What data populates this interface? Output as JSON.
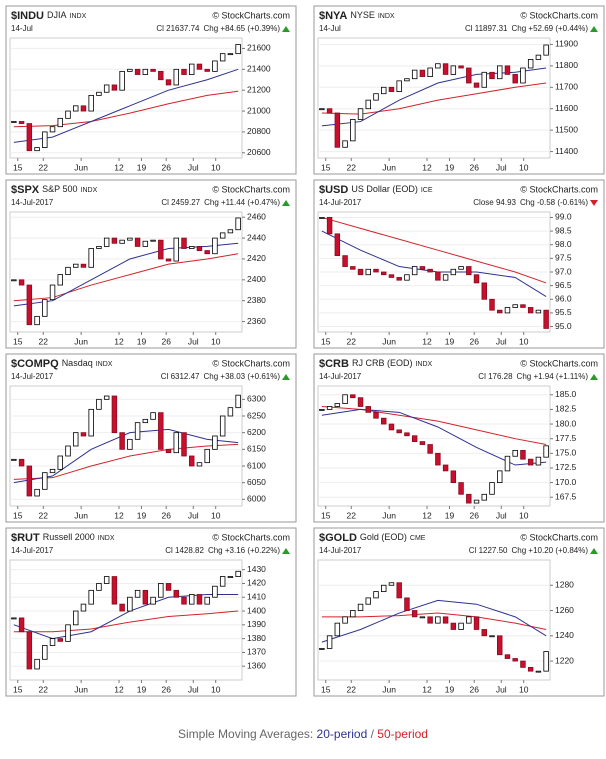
{
  "chart_data": [
    {
      "type": "candlestick",
      "symbol": "$INDU",
      "name": "DJIA",
      "exchange": "INDX",
      "source": "© StockCharts.com",
      "date": "14-Jul",
      "quote": "Cl 21637.74",
      "change": "Chg +84.65 (+0.39%)",
      "direction": "up",
      "xticks": [
        {
          "value": 0.5,
          "label": "15"
        },
        {
          "value": 3.8,
          "label": "22"
        },
        {
          "value": 8.7,
          "label": "Jun"
        },
        {
          "value": 13.6,
          "label": "12"
        },
        {
          "value": 16.5,
          "label": "19"
        },
        {
          "value": 19.7,
          "label": "26"
        },
        {
          "value": 23.2,
          "label": "Jul"
        },
        {
          "value": 26.1,
          "label": "10"
        }
      ],
      "xlim": [
        -0.5,
        29.5
      ],
      "ylim": [
        20550,
        21700
      ],
      "yticks": [
        20600,
        20800,
        21000,
        21200,
        21400,
        21600
      ],
      "closes": [
        20900,
        20880,
        20620,
        20650,
        20800,
        20850,
        20930,
        21000,
        21050,
        21000,
        21150,
        21180,
        21250,
        21200,
        21380,
        21400,
        21350,
        21400,
        21380,
        21300,
        21250,
        21400,
        21350,
        21450,
        21400,
        21380,
        21480,
        21550,
        21550,
        21637.74
      ],
      "ma_x": [
        0,
        5,
        10,
        15,
        20,
        25,
        29
      ],
      "ma20": {
        "color": "#2e3192",
        "values": [
          20700,
          20750,
          20900,
          21050,
          21200,
          21300,
          21400
        ]
      },
      "ma50": {
        "color": "#d2232a",
        "values": [
          20850,
          20860,
          20900,
          20980,
          21070,
          21150,
          21190
        ]
      }
    },
    {
      "type": "candlestick",
      "symbol": "$NYA",
      "name": "NYSE",
      "exchange": "INDX",
      "source": "© StockCharts.com",
      "date": "14-Jul",
      "quote": "Cl 11897.31",
      "change": "Chg +52.69 (+0.44%)",
      "direction": "up",
      "xticks": [
        {
          "value": 0.5,
          "label": "15"
        },
        {
          "value": 3.8,
          "label": "22"
        },
        {
          "value": 8.7,
          "label": "Jun"
        },
        {
          "value": 13.6,
          "label": "12"
        },
        {
          "value": 16.5,
          "label": "19"
        },
        {
          "value": 19.7,
          "label": "26"
        },
        {
          "value": 23.2,
          "label": "Jul"
        },
        {
          "value": 26.1,
          "label": "10"
        }
      ],
      "xlim": [
        -0.5,
        29.5
      ],
      "ylim": [
        11370,
        11930
      ],
      "yticks": [
        11400,
        11500,
        11600,
        11700,
        11800,
        11900
      ],
      "closes": [
        11600,
        11580,
        11420,
        11450,
        11550,
        11600,
        11640,
        11670,
        11700,
        11680,
        11730,
        11740,
        11780,
        11750,
        11790,
        11810,
        11760,
        11800,
        11790,
        11720,
        11700,
        11770,
        11740,
        11800,
        11760,
        11720,
        11790,
        11830,
        11850,
        11897.31
      ],
      "ma_x": [
        0,
        5,
        10,
        15,
        20,
        25,
        29
      ],
      "ma20": {
        "color": "#2e3192",
        "values": [
          11520,
          11540,
          11640,
          11720,
          11760,
          11770,
          11790
        ]
      },
      "ma50": {
        "color": "#d2232a",
        "values": [
          11580,
          11575,
          11600,
          11640,
          11670,
          11700,
          11720
        ]
      }
    },
    {
      "type": "candlestick",
      "symbol": "$SPX",
      "name": "S&P 500",
      "exchange": "INDX",
      "source": "© StockCharts.com",
      "date": "14-Jul-2017",
      "quote": "Cl 2459.27",
      "change": "Chg +11.44 (+0.47%)",
      "direction": "up",
      "xticks": [
        {
          "value": 0.5,
          "label": "15"
        },
        {
          "value": 3.8,
          "label": "22"
        },
        {
          "value": 8.7,
          "label": "Jun"
        },
        {
          "value": 13.6,
          "label": "12"
        },
        {
          "value": 16.5,
          "label": "19"
        },
        {
          "value": 19.7,
          "label": "26"
        },
        {
          "value": 23.2,
          "label": "Jul"
        },
        {
          "value": 26.1,
          "label": "10"
        }
      ],
      "xlim": [
        -0.5,
        29.5
      ],
      "ylim": [
        2350,
        2465
      ],
      "yticks": [
        2360,
        2380,
        2400,
        2420,
        2440,
        2460
      ],
      "closes": [
        2400,
        2395,
        2357,
        2365,
        2381,
        2395,
        2405,
        2412,
        2415,
        2412,
        2430,
        2432,
        2440,
        2435,
        2438,
        2440,
        2432,
        2437,
        2438,
        2420,
        2418,
        2440,
        2430,
        2432,
        2428,
        2425,
        2440,
        2445,
        2448,
        2459.27
      ],
      "ma_x": [
        0,
        5,
        10,
        15,
        20,
        25,
        29
      ],
      "ma20": {
        "color": "#2e3192",
        "values": [
          2375,
          2380,
          2400,
          2420,
          2430,
          2432,
          2435
        ]
      },
      "ma50": {
        "color": "#d2232a",
        "values": [
          2380,
          2383,
          2395,
          2405,
          2415,
          2420,
          2425
        ]
      }
    },
    {
      "type": "candlestick",
      "symbol": "$USD",
      "name": "US Dollar (EOD)",
      "exchange": "ICE",
      "source": "© StockCharts.com",
      "date": "14-Jul-2017",
      "quote": "Close 94.93",
      "change": "Chg -0.58 (-0.61%)",
      "direction": "down",
      "xticks": [
        {
          "value": 0.5,
          "label": "15"
        },
        {
          "value": 3.8,
          "label": "22"
        },
        {
          "value": 8.7,
          "label": "Jun"
        },
        {
          "value": 13.6,
          "label": "12"
        },
        {
          "value": 16.5,
          "label": "19"
        },
        {
          "value": 19.7,
          "label": "26"
        },
        {
          "value": 23.2,
          "label": "Jul"
        },
        {
          "value": 26.1,
          "label": "10"
        }
      ],
      "xlim": [
        -0.5,
        29.5
      ],
      "ylim": [
        94.8,
        99.2
      ],
      "yticks": [
        {
          "value": 95,
          "label": "95.0"
        },
        95.5,
        {
          "value": 96,
          "label": "96.0"
        },
        96.5,
        {
          "value": 97,
          "label": "97.0"
        },
        97.5,
        {
          "value": 98,
          "label": "98.0"
        },
        98.5,
        {
          "value": 99,
          "label": "99.0"
        }
      ],
      "closes": [
        99.0,
        98.4,
        97.6,
        97.2,
        97.1,
        96.9,
        97.1,
        97.0,
        96.9,
        96.8,
        96.7,
        96.9,
        97.2,
        97.1,
        97.0,
        96.7,
        96.9,
        97.1,
        97.2,
        96.9,
        96.6,
        96.0,
        95.6,
        95.5,
        95.7,
        95.8,
        95.7,
        95.5,
        95.6,
        94.93
      ],
      "ma_x": [
        0,
        5,
        10,
        15,
        20,
        25,
        29
      ],
      "ma20": {
        "color": "#2e3192",
        "values": [
          98.5,
          97.8,
          97.2,
          97.0,
          97.0,
          96.8,
          96.1
        ]
      },
      "ma50": {
        "color": "#d2232a",
        "values": [
          99.0,
          98.6,
          98.2,
          97.8,
          97.4,
          97.0,
          96.6
        ]
      }
    },
    {
      "type": "candlestick",
      "symbol": "$COMPQ",
      "name": "Nasdaq",
      "exchange": "INDX",
      "source": "© StockCharts.com",
      "date": "14-Jul-2017",
      "quote": "Cl 6312.47",
      "change": "Chg +38.03 (+0.61%)",
      "direction": "up",
      "xticks": [
        {
          "value": 0.5,
          "label": "15"
        },
        {
          "value": 3.8,
          "label": "22"
        },
        {
          "value": 8.7,
          "label": "Jun"
        },
        {
          "value": 13.6,
          "label": "12"
        },
        {
          "value": 16.5,
          "label": "19"
        },
        {
          "value": 19.7,
          "label": "26"
        },
        {
          "value": 23.2,
          "label": "Jul"
        },
        {
          "value": 26.1,
          "label": "10"
        }
      ],
      "xlim": [
        -0.5,
        29.5
      ],
      "ylim": [
        5980,
        6340
      ],
      "yticks": [
        6000,
        6050,
        6100,
        6150,
        6200,
        6250,
        6300
      ],
      "closes": [
        6120,
        6100,
        6010,
        6030,
        6080,
        6090,
        6130,
        6160,
        6200,
        6190,
        6270,
        6300,
        6310,
        6200,
        6150,
        6180,
        6230,
        6240,
        6260,
        6150,
        6140,
        6200,
        6130,
        6100,
        6110,
        6150,
        6190,
        6250,
        6275,
        6312.47
      ],
      "ma_x": [
        0,
        5,
        10,
        15,
        20,
        25,
        29
      ],
      "ma20": {
        "color": "#2e3192",
        "values": [
          6050,
          6070,
          6150,
          6200,
          6210,
          6180,
          6170
        ]
      },
      "ma50": {
        "color": "#d2232a",
        "values": [
          6060,
          6065,
          6100,
          6130,
          6150,
          6160,
          6165
        ]
      }
    },
    {
      "type": "candlestick",
      "symbol": "$CRB",
      "name": "RJ CRB (EOD)",
      "exchange": "INDX",
      "source": "© StockCharts.com",
      "date": "14-Jul-2017",
      "quote": "Cl 176.28",
      "change": "Chg +1.94 (+1.11%)",
      "direction": "up",
      "xticks": [
        {
          "value": 0.5,
          "label": "15"
        },
        {
          "value": 3.8,
          "label": "22"
        },
        {
          "value": 8.7,
          "label": "Jun"
        },
        {
          "value": 13.6,
          "label": "12"
        },
        {
          "value": 16.5,
          "label": "19"
        },
        {
          "value": 19.7,
          "label": "26"
        },
        {
          "value": 23.2,
          "label": "Jul"
        },
        {
          "value": 26.1,
          "label": "10"
        }
      ],
      "xlim": [
        -0.5,
        29.5
      ],
      "ylim": [
        166,
        186.5
      ],
      "yticks": [
        167.5,
        {
          "value": 170,
          "label": "170.0"
        },
        172.5,
        {
          "value": 175,
          "label": "175.0"
        },
        177.5,
        {
          "value": 180,
          "label": "180.0"
        },
        182.5,
        {
          "value": 185,
          "label": "185.0"
        }
      ],
      "closes": [
        182.5,
        183,
        183.5,
        185,
        184.5,
        183,
        182,
        181,
        180,
        179,
        178.5,
        178,
        177,
        176.5,
        175,
        173,
        172,
        170,
        168,
        166.5,
        167,
        168,
        170,
        172,
        174.5,
        175.5,
        174,
        173,
        174.34,
        176.28
      ],
      "ma_x": [
        0,
        5,
        10,
        15,
        20,
        25,
        29
      ],
      "ma20": {
        "color": "#2e3192",
        "values": [
          181.5,
          182.5,
          182,
          179.5,
          176,
          173,
          173.5
        ]
      },
      "ma50": {
        "color": "#d2232a",
        "values": [
          183,
          182.5,
          181.5,
          180.5,
          179,
          177.5,
          176.5
        ]
      }
    },
    {
      "type": "candlestick",
      "symbol": "$RUT",
      "name": "Russell 2000",
      "exchange": "INDX",
      "source": "© StockCharts.com",
      "date": "14-Jul-2017",
      "quote": "Cl 1428.82",
      "change": "Chg +3.16 (+0.22%)",
      "direction": "up",
      "xticks": [
        {
          "value": 0.5,
          "label": "15"
        },
        {
          "value": 3.8,
          "label": "22"
        },
        {
          "value": 8.7,
          "label": "Jun"
        },
        {
          "value": 13.6,
          "label": "12"
        },
        {
          "value": 16.5,
          "label": "19"
        },
        {
          "value": 19.7,
          "label": "26"
        },
        {
          "value": 23.2,
          "label": "Jul"
        },
        {
          "value": 26.1,
          "label": "10"
        }
      ],
      "xlim": [
        -0.5,
        29.5
      ],
      "ylim": [
        1350,
        1437
      ],
      "yticks": [
        1360,
        1370,
        1380,
        1390,
        1400,
        1410,
        1420,
        1430
      ],
      "closes": [
        1395,
        1385,
        1358,
        1365,
        1375,
        1380,
        1378,
        1390,
        1400,
        1405,
        1415,
        1420,
        1425,
        1405,
        1400,
        1410,
        1415,
        1405,
        1410,
        1420,
        1415,
        1410,
        1405,
        1412,
        1405,
        1410,
        1418,
        1425,
        1425,
        1428.82
      ],
      "ma_x": [
        0,
        5,
        10,
        15,
        20,
        25,
        29
      ],
      "ma20": {
        "color": "#2e3192",
        "values": [
          1390,
          1380,
          1385,
          1400,
          1410,
          1412,
          1412
        ]
      },
      "ma50": {
        "color": "#d2232a",
        "values": [
          1385,
          1385,
          1387,
          1392,
          1396,
          1398,
          1400
        ]
      }
    },
    {
      "type": "candlestick",
      "symbol": "$GOLD",
      "name": "Gold (EOD)",
      "exchange": "CME",
      "source": "© StockCharts.com",
      "date": "14-Jul-2017",
      "quote": "Cl 1227.50",
      "change": "Chg +10.20 (+0.84%)",
      "direction": "up",
      "xticks": [
        {
          "value": 0.5,
          "label": "15"
        },
        {
          "value": 3.8,
          "label": "22"
        },
        {
          "value": 8.7,
          "label": "Jun"
        },
        {
          "value": 13.6,
          "label": "12"
        },
        {
          "value": 16.5,
          "label": "19"
        },
        {
          "value": 19.7,
          "label": "26"
        },
        {
          "value": 23.2,
          "label": "Jul"
        },
        {
          "value": 26.1,
          "label": "10"
        }
      ],
      "xlim": [
        -0.5,
        29.5
      ],
      "ylim": [
        1205,
        1300
      ],
      "yticks": [
        1220,
        1240,
        1260,
        1280
      ],
      "closes": [
        1230,
        1240,
        1250,
        1255,
        1260,
        1265,
        1270,
        1275,
        1280,
        1282,
        1270,
        1260,
        1255,
        1255,
        1250,
        1255,
        1250,
        1245,
        1250,
        1255,
        1245,
        1240,
        1240,
        1225,
        1222,
        1220,
        1215,
        1212,
        1212,
        1227.5
      ],
      "ma_x": [
        0,
        5,
        10,
        15,
        20,
        25,
        29
      ],
      "ma20": {
        "color": "#2e3192",
        "values": [
          1235,
          1245,
          1258,
          1268,
          1265,
          1255,
          1240
        ]
      },
      "ma50": {
        "color": "#d2232a",
        "values": [
          1255,
          1255,
          1256,
          1258,
          1255,
          1250,
          1245
        ]
      }
    }
  ],
  "footer": {
    "prefix": "Simple Moving Averages:",
    "ma20": "20-period",
    "separator": "/",
    "ma50": "50-period"
  }
}
